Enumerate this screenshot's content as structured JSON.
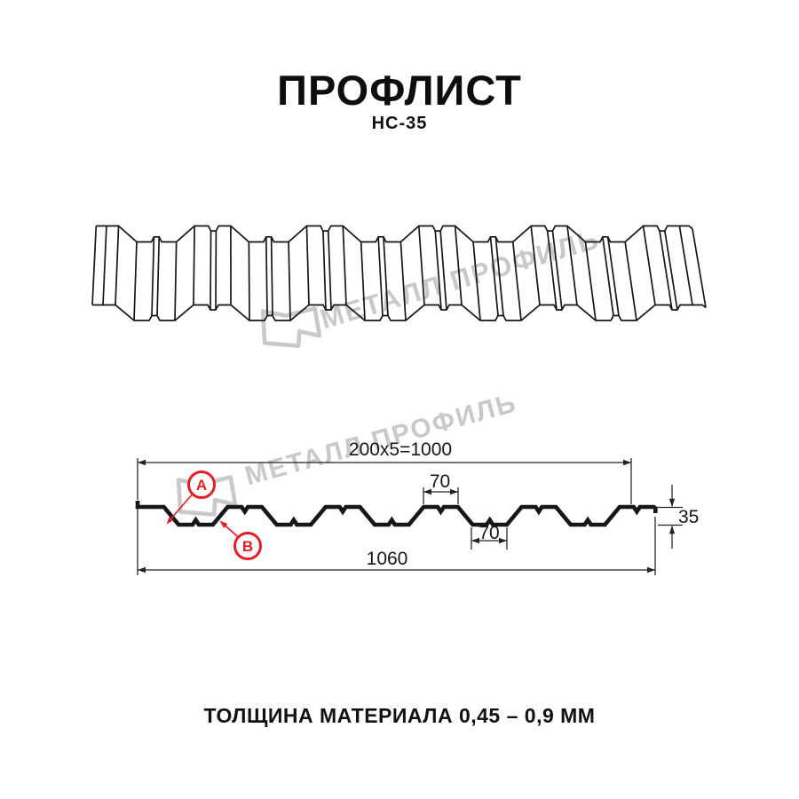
{
  "title": "ПРОФЛИСТ",
  "subtitle": "НС-35",
  "watermark": {
    "text": "МЕТАЛЛ ПРОФИЛЬ"
  },
  "dims": {
    "pitch_total": "200x5=1000",
    "crest_width": "70",
    "valley_width": "70",
    "height": "35",
    "overall_width": "1060"
  },
  "markers": {
    "a": "А",
    "b": "В"
  },
  "footer": {
    "text": "ТОЛЩИНА МАТЕРИАЛА 0,45 – 0,9 ММ"
  },
  "colors": {
    "red": "#e31e24",
    "line": "#161616",
    "watermark": "#c9c9c9"
  }
}
